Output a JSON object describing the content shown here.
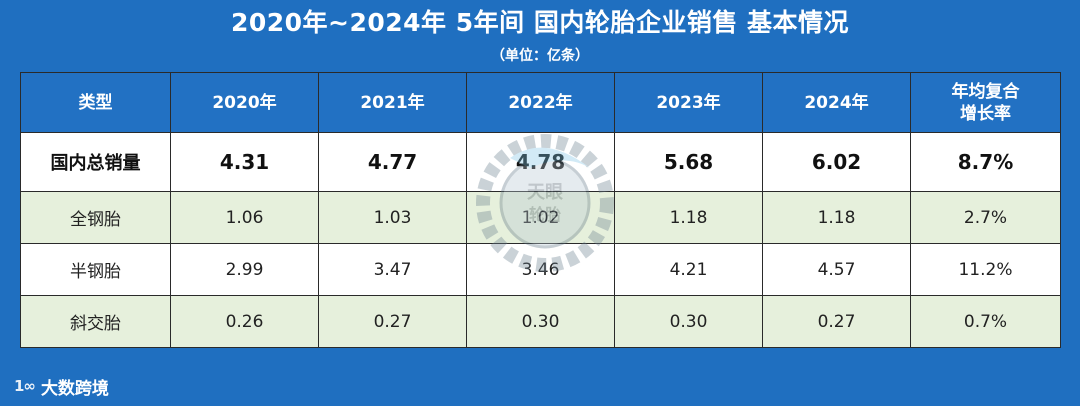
{
  "title": "2020年~2024年 5年间 国内轮胎企业销售 基本情况",
  "subtitle": "（单位：亿条）",
  "chart_data": {
    "type": "table",
    "columns": [
      "类型",
      "2020年",
      "2021年",
      "2022年",
      "2023年",
      "2024年",
      "年均复合增长率"
    ],
    "header_labels": [
      "类型",
      "2020年",
      "2021年",
      "2022年",
      "2023年",
      "2024年",
      "年均复合",
      "增长率"
    ],
    "rows": [
      {
        "category": "国内总销量",
        "values": [
          "4.31",
          "4.77",
          "4.78",
          "5.68",
          "6.02"
        ],
        "cagr": "8.7%"
      },
      {
        "category": "全钢胎",
        "values": [
          "1.06",
          "1.03",
          "1.02",
          "1.18",
          "1.18"
        ],
        "cagr": "2.7%"
      },
      {
        "category": "半钢胎",
        "values": [
          "2.99",
          "3.47",
          "3.46",
          "4.21",
          "4.57"
        ],
        "cagr": "11.2%"
      },
      {
        "category": "斜交胎",
        "values": [
          "0.26",
          "0.27",
          "0.30",
          "0.30",
          "0.27"
        ],
        "cagr": "0.7%"
      }
    ]
  },
  "footer": {
    "brand": "大数跨境",
    "mark": "1∞"
  },
  "colors": {
    "header_bg": "#2271c3",
    "frame_bg": "#1f6fc0",
    "shade_row": "#e6f0dc",
    "plain_row": "#ffffff"
  }
}
